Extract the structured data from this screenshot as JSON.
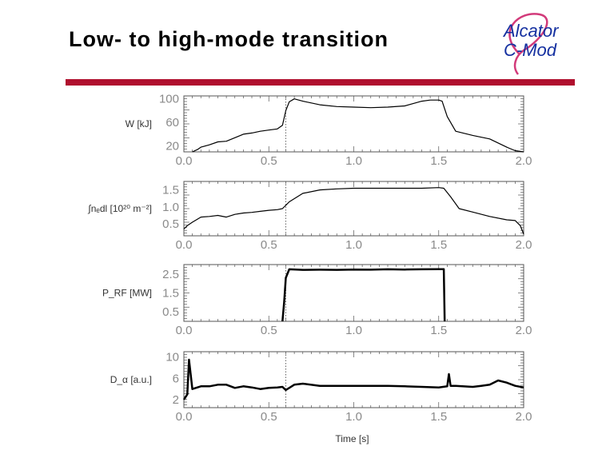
{
  "slide": {
    "title": "Low- to high-mode transition",
    "logo_line1": "Alcator",
    "logo_line2": "C-Mod"
  },
  "colors": {
    "title_rule": "#b0102e",
    "logo_text": "#1530a0",
    "logo_swoosh": "#d23a7a",
    "trace": "#000000",
    "axis": "#555555",
    "tick_label": "#8a8a8a"
  },
  "chart_data": [
    {
      "type": "line",
      "ylabel": "W [kJ]",
      "xlim": [
        0,
        2.0
      ],
      "ylim": [
        10,
        105
      ],
      "xticks": [
        "0.0",
        "0.5",
        "1.0",
        "1.5",
        "2.0"
      ],
      "yticks": [
        "20",
        "60",
        "100"
      ],
      "series": [
        {
          "x": [
            0.05,
            0.08,
            0.1,
            0.15,
            0.2,
            0.25,
            0.3,
            0.35,
            0.4,
            0.45,
            0.5,
            0.55,
            0.58,
            0.6,
            0.62,
            0.65,
            0.7,
            0.8,
            0.9,
            1.0,
            1.1,
            1.2,
            1.3,
            1.4,
            1.45,
            1.5,
            1.52,
            1.55,
            1.6,
            1.7,
            1.8,
            1.9,
            1.95,
            2.0
          ],
          "y": [
            10,
            14,
            18,
            22,
            27,
            28,
            34,
            40,
            42,
            45,
            47,
            49,
            55,
            80,
            95,
            100,
            96,
            90,
            87,
            86,
            85,
            86,
            88,
            96,
            98,
            98,
            96,
            70,
            45,
            38,
            32,
            18,
            12,
            10
          ]
        }
      ]
    },
    {
      "type": "line",
      "ylabel": "∫nₑdl [10²⁰ m⁻²]",
      "xlim": [
        0,
        2.0
      ],
      "ylim": [
        0.15,
        1.75
      ],
      "xticks": [
        "0.0",
        "0.5",
        "1.0",
        "1.5",
        "2.0"
      ],
      "yticks": [
        "0.5",
        "1.0",
        "1.5"
      ],
      "series": [
        {
          "x": [
            0.0,
            0.02,
            0.05,
            0.1,
            0.15,
            0.2,
            0.25,
            0.3,
            0.35,
            0.4,
            0.45,
            0.5,
            0.55,
            0.58,
            0.62,
            0.7,
            0.8,
            0.9,
            1.0,
            1.1,
            1.2,
            1.3,
            1.4,
            1.5,
            1.53,
            1.57,
            1.62,
            1.7,
            1.8,
            1.9,
            1.95,
            1.98,
            2.0
          ],
          "y": [
            0.35,
            0.45,
            0.55,
            0.7,
            0.72,
            0.75,
            0.7,
            0.78,
            0.82,
            0.84,
            0.87,
            0.9,
            0.92,
            0.95,
            1.15,
            1.4,
            1.5,
            1.53,
            1.55,
            1.55,
            1.55,
            1.55,
            1.55,
            1.57,
            1.55,
            1.3,
            0.95,
            0.85,
            0.72,
            0.62,
            0.6,
            0.45,
            0.2
          ]
        }
      ]
    },
    {
      "type": "line",
      "ylabel": "P_RF [MW]",
      "xlim": [
        0,
        2.0
      ],
      "ylim": [
        0,
        3.0
      ],
      "xticks": [
        "0.0",
        "0.5",
        "1.0",
        "1.5",
        "2.0"
      ],
      "yticks": [
        "0.5",
        "1.5",
        "2.5"
      ],
      "series": [
        {
          "x": [
            0.58,
            0.59,
            0.6,
            0.62,
            0.7,
            0.8,
            0.9,
            1.0,
            1.1,
            1.2,
            1.3,
            1.4,
            1.5,
            1.53,
            1.535
          ],
          "y": [
            0.0,
            1.0,
            2.3,
            2.75,
            2.72,
            2.73,
            2.72,
            2.74,
            2.73,
            2.75,
            2.74,
            2.75,
            2.76,
            2.76,
            0.0
          ]
        }
      ]
    },
    {
      "type": "line",
      "ylabel": "D_α [a.u.]",
      "xlim": [
        0,
        2.0
      ],
      "ylim": [
        0.5,
        11
      ],
      "xticks": [
        "0.0",
        "0.5",
        "1.0",
        "1.5",
        "2.0"
      ],
      "yticks": [
        "2",
        "6",
        "10"
      ],
      "series": [
        {
          "x": [
            0.0,
            0.02,
            0.03,
            0.05,
            0.1,
            0.15,
            0.2,
            0.25,
            0.3,
            0.35,
            0.4,
            0.45,
            0.5,
            0.55,
            0.58,
            0.6,
            0.65,
            0.7,
            0.8,
            0.9,
            1.0,
            1.1,
            1.2,
            1.3,
            1.4,
            1.5,
            1.55,
            1.56,
            1.57,
            1.6,
            1.7,
            1.75,
            1.8,
            1.85,
            1.9,
            1.95,
            2.0
          ],
          "y": [
            2.0,
            3.0,
            9.5,
            4.0,
            4.5,
            4.5,
            4.8,
            4.8,
            4.2,
            4.5,
            4.3,
            4.0,
            4.2,
            4.3,
            4.4,
            3.8,
            4.8,
            5.0,
            4.6,
            4.6,
            4.6,
            4.6,
            4.6,
            4.5,
            4.4,
            4.3,
            4.5,
            6.8,
            4.6,
            4.6,
            4.4,
            4.6,
            4.8,
            5.6,
            5.2,
            4.6,
            4.3
          ]
        }
      ]
    }
  ],
  "xlabel": "Time [s]"
}
